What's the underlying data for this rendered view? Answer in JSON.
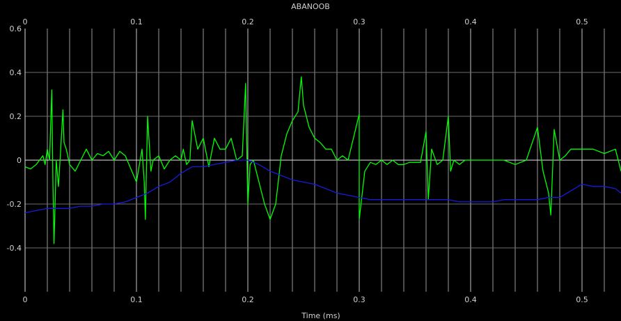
{
  "chart_data": {
    "type": "line",
    "title": "ABANOOB",
    "xlabel": "Time (ms)",
    "ylabel": "",
    "xlim": [
      0,
      0.535
    ],
    "ylim": [
      -0.6,
      0.6
    ],
    "grid": true,
    "x_ticks": [
      "0",
      "0.1",
      "0.2",
      "0.3",
      "0.4",
      "0.5"
    ],
    "x_tick_values": [
      0,
      0.1,
      0.2,
      0.3,
      0.4,
      0.5
    ],
    "y_ticks": [
      "0.6",
      "0.4",
      "0.2",
      "0",
      "-0.2",
      "-0.4"
    ],
    "y_tick_values": [
      0.6,
      0.4,
      0.2,
      0,
      -0.2,
      -0.4
    ],
    "series": [
      {
        "color": "#00ff00",
        "x": [
          0,
          0.005,
          0.01,
          0.013,
          0.016,
          0.018,
          0.02,
          0.022,
          0.024,
          0.025,
          0.026,
          0.028,
          0.03,
          0.032,
          0.034,
          0.035,
          0.037,
          0.04,
          0.045,
          0.05,
          0.055,
          0.06,
          0.065,
          0.07,
          0.075,
          0.08,
          0.085,
          0.09,
          0.1,
          0.105,
          0.107,
          0.108,
          0.11,
          0.113,
          0.115,
          0.12,
          0.125,
          0.13,
          0.135,
          0.14,
          0.142,
          0.145,
          0.148,
          0.15,
          0.155,
          0.16,
          0.165,
          0.17,
          0.175,
          0.18,
          0.185,
          0.19,
          0.195,
          0.198,
          0.2,
          0.202,
          0.205,
          0.21,
          0.215,
          0.22,
          0.225,
          0.23,
          0.235,
          0.24,
          0.245,
          0.248,
          0.25,
          0.255,
          0.26,
          0.265,
          0.27,
          0.275,
          0.28,
          0.285,
          0.29,
          0.3,
          0.3,
          0.305,
          0.31,
          0.315,
          0.32,
          0.325,
          0.33,
          0.335,
          0.34,
          0.345,
          0.35,
          0.355,
          0.36,
          0.362,
          0.365,
          0.37,
          0.375,
          0.38,
          0.382,
          0.385,
          0.39,
          0.395,
          0.4,
          0.41,
          0.42,
          0.43,
          0.44,
          0.45,
          0.46,
          0.465,
          0.47,
          0.472,
          0.475,
          0.48,
          0.485,
          0.49,
          0.5,
          0.51,
          0.52,
          0.53,
          0.535
        ],
        "values": [
          -0.03,
          -0.04,
          -0.02,
          0.0,
          0.02,
          -0.02,
          0.05,
          0.0,
          0.32,
          -0.1,
          -0.38,
          0.0,
          -0.12,
          0.05,
          0.23,
          0.08,
          0.05,
          -0.02,
          -0.05,
          0.0,
          0.05,
          0.0,
          0.03,
          0.02,
          0.04,
          0.0,
          0.04,
          0.02,
          -0.1,
          0.05,
          -0.1,
          -0.27,
          0.2,
          -0.05,
          0.0,
          0.02,
          -0.04,
          0.0,
          0.02,
          0.0,
          0.05,
          -0.02,
          0.0,
          0.18,
          0.05,
          0.1,
          -0.03,
          0.1,
          0.05,
          0.05,
          0.1,
          0.0,
          0.02,
          0.35,
          -0.2,
          -0.02,
          0.0,
          -0.1,
          -0.2,
          -0.27,
          -0.2,
          0.02,
          0.12,
          0.18,
          0.22,
          0.38,
          0.25,
          0.15,
          0.1,
          0.08,
          0.05,
          0.05,
          0.0,
          0.02,
          0.0,
          0.21,
          -0.27,
          -0.05,
          -0.01,
          -0.02,
          0.0,
          -0.02,
          0.0,
          -0.02,
          -0.02,
          -0.01,
          -0.01,
          -0.01,
          0.13,
          -0.18,
          0.05,
          -0.02,
          0.0,
          0.2,
          -0.05,
          0.0,
          -0.02,
          0.0,
          0.0,
          0.0,
          0.0,
          0.0,
          -0.02,
          0.0,
          0.15,
          -0.05,
          -0.15,
          -0.25,
          0.14,
          0.0,
          0.02,
          0.05,
          0.05,
          0.05,
          0.03,
          0.05,
          -0.05
        ]
      },
      {
        "color": "#1a1adf",
        "x": [
          0,
          0.01,
          0.02,
          0.03,
          0.04,
          0.05,
          0.06,
          0.07,
          0.08,
          0.09,
          0.1,
          0.11,
          0.12,
          0.13,
          0.14,
          0.15,
          0.16,
          0.17,
          0.18,
          0.19,
          0.2,
          0.21,
          0.22,
          0.23,
          0.24,
          0.25,
          0.26,
          0.27,
          0.28,
          0.29,
          0.3,
          0.31,
          0.32,
          0.33,
          0.34,
          0.35,
          0.36,
          0.37,
          0.38,
          0.39,
          0.4,
          0.41,
          0.42,
          0.43,
          0.44,
          0.45,
          0.46,
          0.47,
          0.48,
          0.49,
          0.5,
          0.51,
          0.52,
          0.53,
          0.535
        ],
        "values": [
          -0.24,
          -0.23,
          -0.22,
          -0.22,
          -0.22,
          -0.21,
          -0.21,
          -0.2,
          -0.2,
          -0.19,
          -0.17,
          -0.15,
          -0.12,
          -0.1,
          -0.06,
          -0.03,
          -0.03,
          -0.02,
          -0.01,
          0.0,
          0.0,
          -0.02,
          -0.05,
          -0.07,
          -0.09,
          -0.1,
          -0.11,
          -0.13,
          -0.15,
          -0.16,
          -0.17,
          -0.18,
          -0.18,
          -0.18,
          -0.18,
          -0.18,
          -0.18,
          -0.18,
          -0.18,
          -0.19,
          -0.19,
          -0.19,
          -0.19,
          -0.18,
          -0.18,
          -0.18,
          -0.18,
          -0.17,
          -0.17,
          -0.14,
          -0.11,
          -0.12,
          -0.12,
          -0.13,
          -0.15
        ]
      }
    ]
  }
}
